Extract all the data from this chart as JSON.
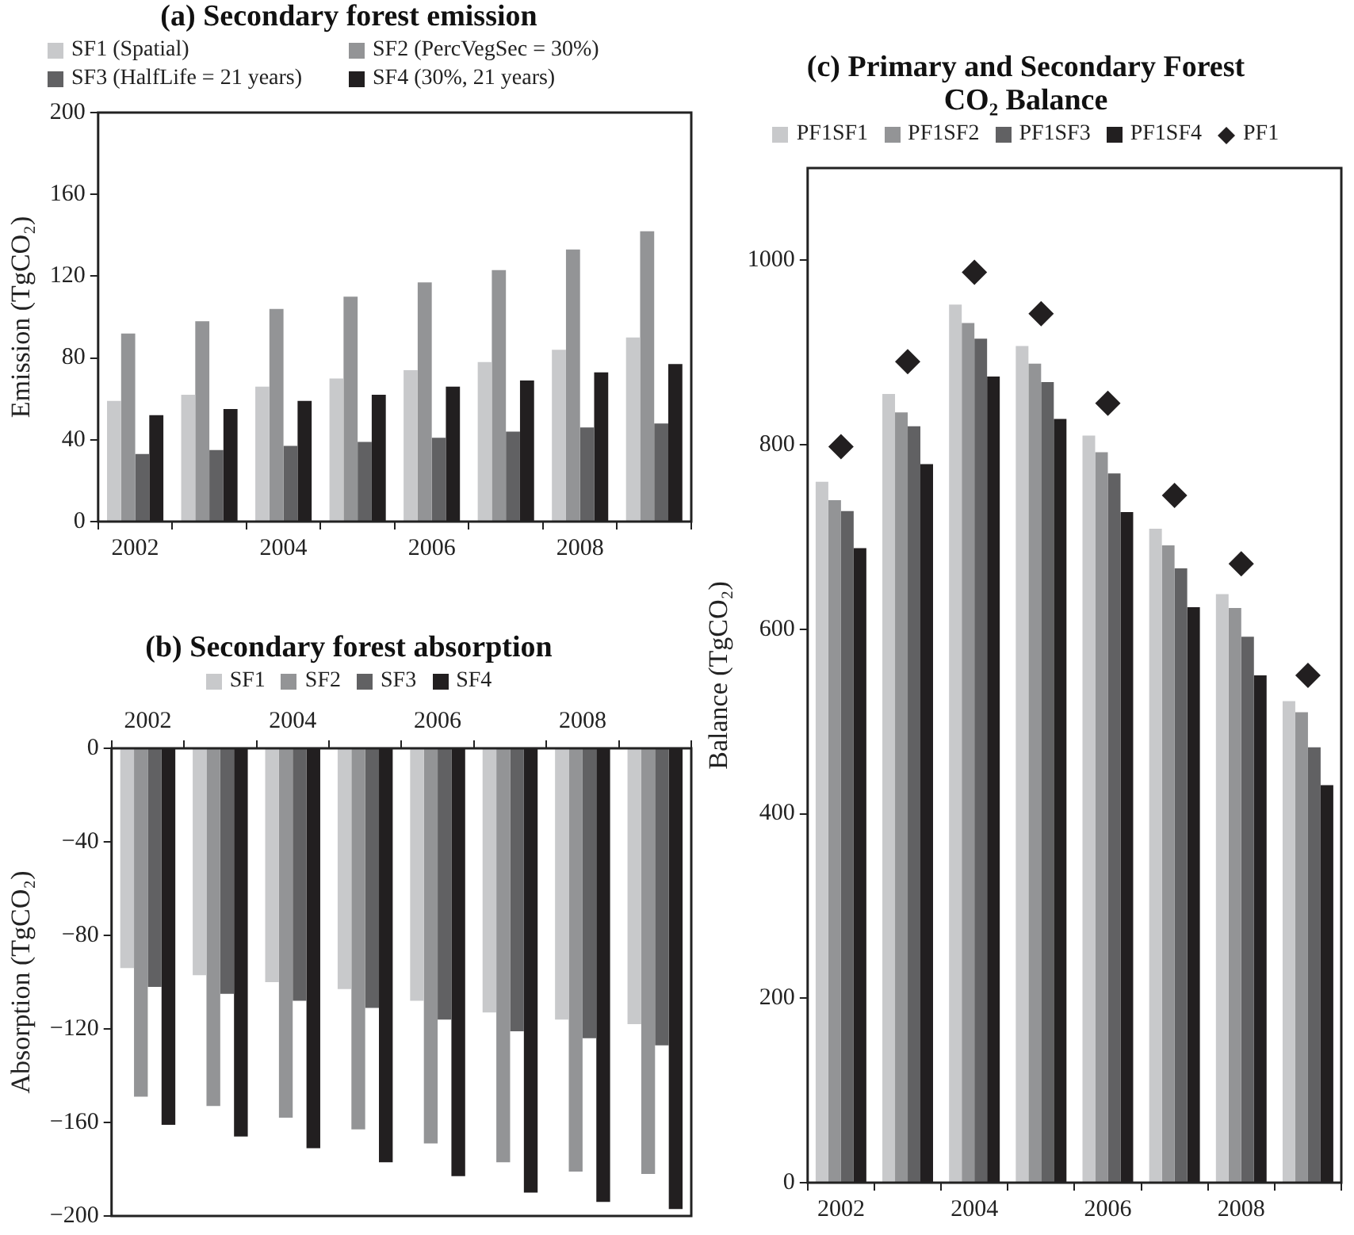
{
  "chart_data": [
    {
      "type": "bar",
      "title": "(a) Secondary forest emission",
      "ylabel": "Emission (TgCO₂)",
      "categories": [
        "2002",
        null,
        "2004",
        null,
        "2006",
        null,
        "2008",
        null
      ],
      "ylim": [
        0,
        200
      ],
      "yticks": [
        0,
        40,
        80,
        120,
        160,
        200
      ],
      "grid": false,
      "legend": "top",
      "series": [
        {
          "name": "SF1 (Spatial)",
          "color": "#c8c9cb",
          "values": [
            59,
            62,
            66,
            70,
            74,
            78,
            84,
            90
          ]
        },
        {
          "name": "SF2 (PercVegSec = 30%)",
          "color": "#939496",
          "values": [
            92,
            98,
            104,
            110,
            117,
            123,
            133,
            142
          ]
        },
        {
          "name": "SF3 (HalfLife = 21 years)",
          "color": "#616163",
          "values": [
            33,
            35,
            37,
            39,
            41,
            44,
            46,
            48
          ]
        },
        {
          "name": "SF4 (30%, 21 years)",
          "color": "#221f20",
          "values": [
            52,
            55,
            59,
            62,
            66,
            69,
            73,
            77
          ]
        }
      ]
    },
    {
      "type": "bar",
      "title": "(b) Secondary forest absorption",
      "ylabel": "Absorption (TgCO₂)",
      "categories": [
        "2002",
        null,
        "2004",
        null,
        "2006",
        null,
        "2008",
        null
      ],
      "ylim": [
        -200,
        0
      ],
      "yticks": [
        -200,
        -160,
        -120,
        -80,
        -40,
        0
      ],
      "grid": false,
      "legend": "top",
      "series": [
        {
          "name": "SF1",
          "color": "#c8c9cb",
          "values": [
            -94,
            -97,
            -100,
            -103,
            -108,
            -113,
            -116,
            -118
          ]
        },
        {
          "name": "SF2",
          "color": "#939496",
          "values": [
            -149,
            -153,
            -158,
            -163,
            -169,
            -177,
            -181,
            -182
          ]
        },
        {
          "name": "SF3",
          "color": "#616163",
          "values": [
            -102,
            -105,
            -108,
            -111,
            -116,
            -121,
            -124,
            -127
          ]
        },
        {
          "name": "SF4",
          "color": "#221f20",
          "values": [
            -161,
            -166,
            -171,
            -177,
            -183,
            -190,
            -194,
            -197
          ]
        }
      ]
    },
    {
      "type": "bar",
      "title": "(c) Primary and Secondary Forest CO₂ Balance",
      "ylabel": "Balance (TgCO₂)",
      "categories": [
        "2002",
        null,
        "2004",
        null,
        "2006",
        null,
        "2008",
        null
      ],
      "ylim": [
        0,
        1100
      ],
      "yticks": [
        0,
        200,
        400,
        600,
        800,
        1000
      ],
      "grid": false,
      "legend": "top",
      "series": [
        {
          "name": "PF1SF1",
          "color": "#c8c9cb",
          "values": [
            760,
            855,
            952,
            907,
            810,
            709,
            638,
            522
          ]
        },
        {
          "name": "PF1SF2",
          "color": "#939496",
          "values": [
            740,
            835,
            932,
            888,
            792,
            691,
            623,
            510
          ]
        },
        {
          "name": "PF1SF3",
          "color": "#616163",
          "values": [
            728,
            820,
            915,
            868,
            769,
            666,
            592,
            472
          ]
        },
        {
          "name": "PF1SF4",
          "color": "#221f20",
          "values": [
            688,
            779,
            874,
            828,
            727,
            624,
            550,
            431
          ]
        },
        {
          "name": "PF1",
          "type": "scatter",
          "marker": "diamond",
          "color": "#221f20",
          "values": [
            798,
            890,
            987,
            942,
            845,
            745,
            671,
            550
          ]
        }
      ]
    }
  ]
}
